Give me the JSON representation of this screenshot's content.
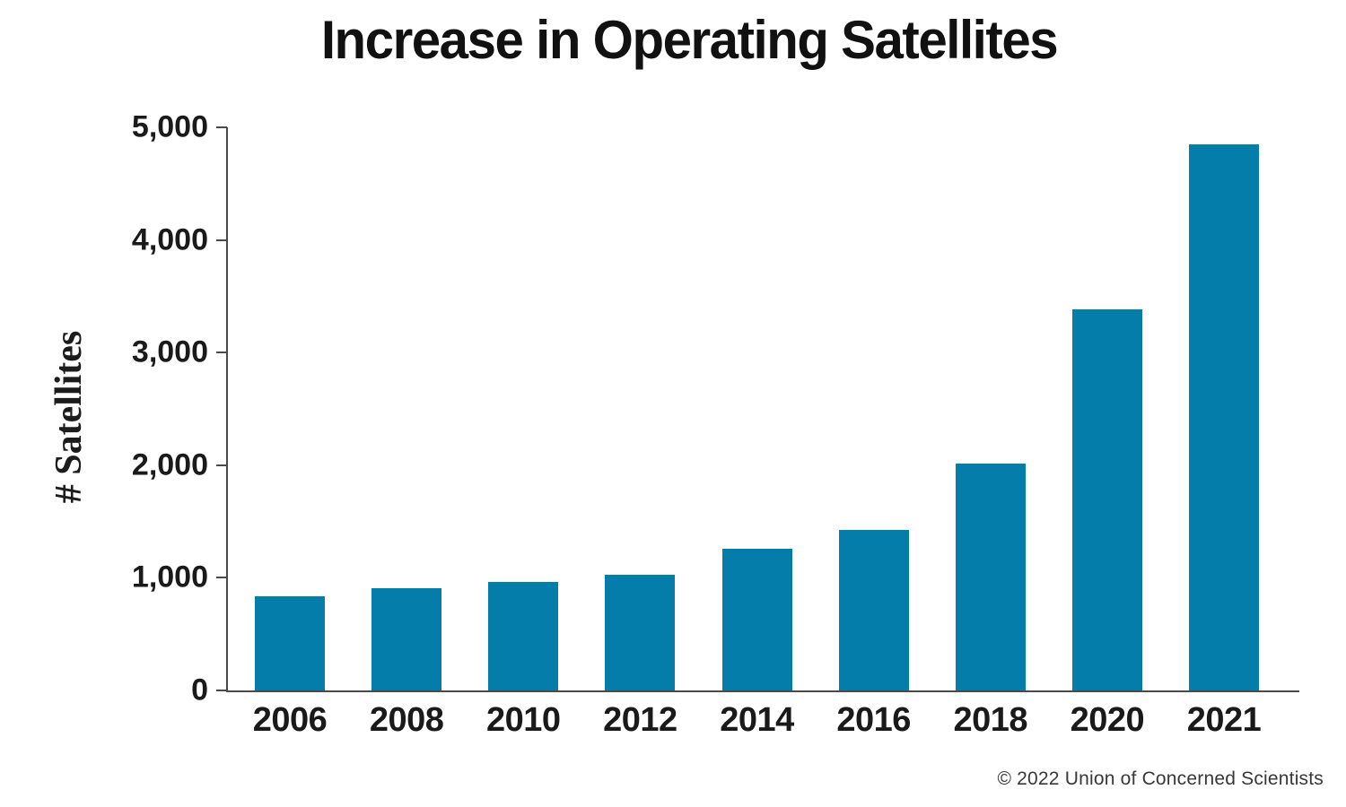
{
  "page": {
    "title": "Increase in Operating Satellites",
    "credit": "© 2022 Union of Concerned Scientists"
  },
  "chart_data": {
    "type": "bar",
    "title": "Increase in Operating Satellites",
    "categories": [
      "2006",
      "2008",
      "2010",
      "2012",
      "2014",
      "2016",
      "2018",
      "2020",
      "2021"
    ],
    "values": [
      835,
      905,
      965,
      1025,
      1260,
      1425,
      2015,
      3385,
      4850
    ],
    "xlabel": "",
    "ylabel": "# Satellites",
    "ylim": [
      0,
      5000
    ],
    "yticks": [
      0,
      1000,
      2000,
      3000,
      4000,
      5000
    ],
    "ytick_labels": [
      "0",
      "1,000",
      "2,000",
      "3,000",
      "4,000",
      "5,000"
    ],
    "grid": false,
    "legend_position": "none",
    "bar_color": "#047DAA",
    "axis_color": "#4A4A4A",
    "credit": "© 2022 Union of Concerned Scientists"
  }
}
